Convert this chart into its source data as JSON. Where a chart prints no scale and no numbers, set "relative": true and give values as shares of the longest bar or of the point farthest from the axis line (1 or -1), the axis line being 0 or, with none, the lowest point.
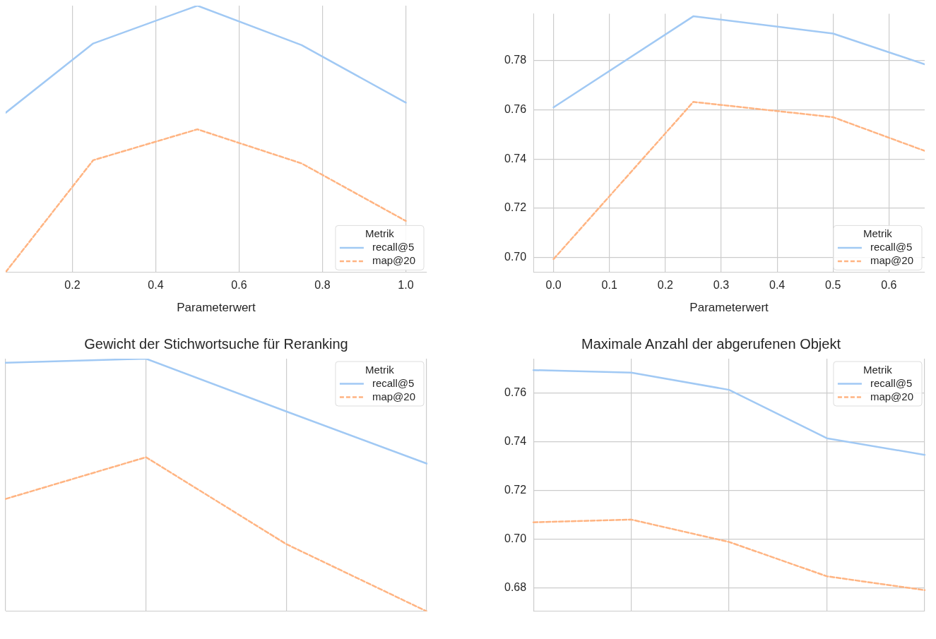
{
  "chart_data": [
    {
      "type": "line",
      "xlabel": "Parameterwert",
      "legend_title": "Metrik",
      "legend": "bottom right",
      "grid": true,
      "relative": true,
      "x": [
        0.04,
        0.25,
        0.5,
        0.75,
        1.0
      ],
      "xlim": [
        0.04,
        1.05
      ],
      "xticks": [
        {
          "value": 0.2,
          "label": "0.2"
        },
        {
          "value": 0.4,
          "label": "0.4"
        },
        {
          "value": 0.6,
          "label": "0.6"
        },
        {
          "value": 0.8,
          "label": "0.8"
        },
        {
          "value": 1,
          "label": "1.0"
        }
      ],
      "series": [
        {
          "name": "recall@5",
          "color": "#a1c9f4",
          "line_style": "solid",
          "values": [
            0.598,
            0.858,
            1,
            0.852,
            0.636
          ]
        },
        {
          "name": "map@20",
          "color": "#ffb482",
          "line_style": "dashed",
          "values": [
            0,
            0.42,
            0.536,
            0.408,
            0.192
          ]
        }
      ]
    },
    {
      "type": "line",
      "xlabel": "Parameterwert",
      "legend_title": "Metrik",
      "legend": "bottom right",
      "grid": true,
      "x": [
        0,
        0.25,
        0.5,
        0.664
      ],
      "xlim": [
        -0.036,
        0.664
      ],
      "xticks": [
        {
          "value": 0,
          "label": "0.0"
        },
        {
          "value": 0.1,
          "label": "0.1"
        },
        {
          "value": 0.2,
          "label": "0.2"
        },
        {
          "value": 0.3,
          "label": "0.3"
        },
        {
          "value": 0.4,
          "label": "0.4"
        },
        {
          "value": 0.5,
          "label": "0.5"
        },
        {
          "value": 0.6,
          "label": "0.6"
        }
      ],
      "ylim": [
        0.694,
        0.799
      ],
      "yticks": [
        {
          "value": 0.7,
          "label": "0.70"
        },
        {
          "value": 0.72,
          "label": "0.72"
        },
        {
          "value": 0.74,
          "label": "0.74"
        },
        {
          "value": 0.76,
          "label": "0.76"
        },
        {
          "value": 0.78,
          "label": "0.78"
        }
      ],
      "series": [
        {
          "name": "recall@5",
          "color": "#a1c9f4",
          "line_style": "solid",
          "values": [
            0.761,
            0.798,
            0.791,
            0.7785
          ]
        },
        {
          "name": "map@20",
          "color": "#ffb482",
          "line_style": "dashed",
          "values": [
            0.6993,
            0.7632,
            0.757,
            0.7433
          ]
        }
      ]
    },
    {
      "type": "line",
      "title": "Gewicht der Stichwortsuche für Reranking",
      "legend_title": "Metrik",
      "legend": "top right",
      "grid": true,
      "relative": true,
      "categories": [
        null,
        null,
        null,
        null
      ],
      "series": [
        {
          "name": "recall@5",
          "color": "#a1c9f4",
          "line_style": "solid",
          "values": [
            0.984,
            1,
            0.791,
            0.585
          ]
        },
        {
          "name": "map@20",
          "color": "#ffb482",
          "line_style": "dashed",
          "values": [
            0.445,
            0.61,
            0.266,
            0
          ]
        }
      ]
    },
    {
      "type": "line",
      "title": "Maximale Anzahl der abgerufenen Objekt",
      "legend_title": "Metrik",
      "legend": "top right",
      "grid": true,
      "categories": [
        null,
        null,
        null,
        null,
        null
      ],
      "ylim": [
        0.6703,
        0.7741
      ],
      "yticks": [
        {
          "value": 0.68,
          "label": "0.68"
        },
        {
          "value": 0.7,
          "label": "0.70"
        },
        {
          "value": 0.72,
          "label": "0.72"
        },
        {
          "value": 0.74,
          "label": "0.74"
        },
        {
          "value": 0.76,
          "label": "0.76"
        }
      ],
      "series": [
        {
          "name": "recall@5",
          "color": "#a1c9f4",
          "line_style": "solid",
          "values": [
            0.7694,
            0.7684,
            0.7613,
            0.7414,
            0.7346
          ]
        },
        {
          "name": "map@20",
          "color": "#ffb482",
          "line_style": "dashed",
          "values": [
            0.7069,
            0.708,
            0.6988,
            0.6847,
            0.679
          ]
        }
      ]
    }
  ]
}
